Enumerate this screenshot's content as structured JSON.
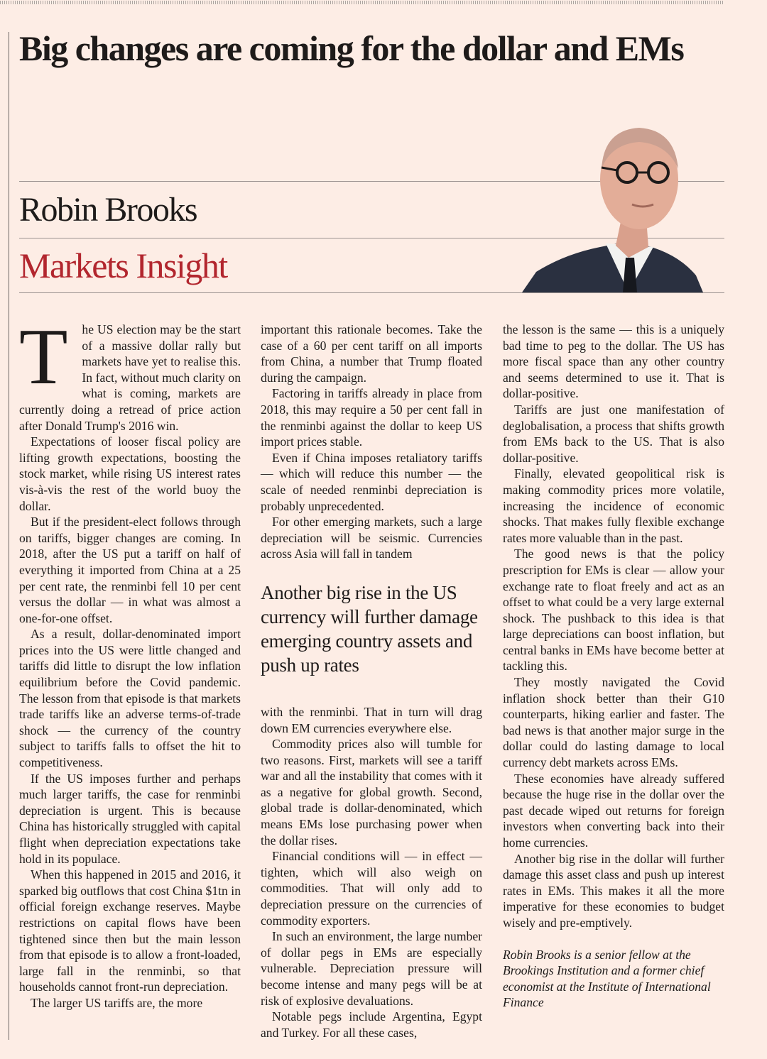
{
  "headline": "Big changes are coming for the dollar and EMs",
  "author": "Robin Brooks",
  "column_name": "Markets Insight",
  "colors": {
    "background": "#fdede5",
    "accent": "#b2262e"
  },
  "photo": {
    "alt": "author-portrait"
  },
  "article": {
    "drop_cap": "T",
    "col1": [
      "he US election may be the start of a massive dollar rally but markets have yet to realise this. In fact, without much clarity on what is coming, markets are currently doing a retread of price action after Donald Trump's 2016 win.",
      "Expectations of looser fiscal policy are lifting growth expectations, boosting the stock market, while rising US interest rates vis-à-vis the rest of the world buoy the dollar.",
      "But if the president-elect follows through on tariffs, bigger changes are coming. In 2018, after the US put a tariff on half of everything it imported from China at a 25 per cent rate, the renminbi fell 10 per cent versus the dollar — in what was almost a one-for-one offset.",
      "As a result, dollar-denominated import prices into the US were little changed and tariffs did little to disrupt the low inflation equilibrium before the Covid pandemic. The lesson from that episode is that markets trade tariffs like an adverse terms-of-trade shock — the currency of the country subject to tariffs falls to offset the hit to competitiveness.",
      "If the US imposes further and perhaps much larger tariffs, the case for renminbi depreciation is urgent. This is because China has historically struggled with capital flight when depreciation expectations take hold in its populace.",
      "When this happened in 2015 and 2016, it sparked big outflows that cost China $1tn in official foreign exchange reserves. Maybe restrictions on capital flows have been tightened since then but the main lesson from that episode is to allow a front-loaded, large fall in the renminbi, so that households cannot front-run depreciation.",
      "The larger US tariffs are, the more"
    ],
    "col2_top": [
      "important this rationale becomes. Take the case of a 60 per cent tariff on all imports from China, a number that Trump floated during the campaign.",
      "Factoring in tariffs already in place from 2018, this may require a 50 per cent fall in the renminbi against the dollar to keep US import prices stable.",
      "Even if China imposes retaliatory tariffs — which will reduce this number — the scale of needed renminbi depreciation is probably unprecedented.",
      "For other emerging markets, such a large depreciation will be seismic. Currencies across Asia will fall in tandem"
    ],
    "pull_quote": "Another big rise in the US currency will further damage emerging country assets and push up rates",
    "col2_bottom": [
      "with the renminbi. That in turn will drag down EM currencies everywhere else.",
      "Commodity prices also will tumble for two reasons. First, markets will see a tariff war and all the instability that comes with it as a negative for global growth. Second, global trade is dollar-denominated, which means EMs lose purchasing power when the dollar rises.",
      "Financial conditions will — in effect — tighten, which will also weigh on commodities. That will only add to depreciation pressure on the currencies of commodity exporters.",
      "In such an environment, the large number of dollar pegs in EMs are especially vulnerable. Depreciation pressure will become intense and many pegs will be at risk of explosive devaluations.",
      "Notable pegs include Argentina, Egypt and Turkey. For all these cases,"
    ],
    "col3": [
      "the lesson is the same — this is a uniquely bad time to peg to the dollar. The US has more fiscal space than any other country and seems determined to use it. That is dollar-positive.",
      "Tariffs are just one manifestation of deglobalisation, a process that shifts growth from EMs back to the US. That is also dollar-positive.",
      "Finally, elevated geopolitical risk is making commodity prices more volatile, increasing the incidence of economic shocks. That makes fully flexible exchange rates more valuable than in the past.",
      "The good news is that the policy prescription for EMs is clear — allow your exchange rate to float freely and act as an offset to what could be a very large external shock. The pushback to this idea is that large depreciations can boost inflation, but central banks in EMs have become better at tackling this.",
      "They mostly navigated the Covid inflation shock better than their G10 counterparts, hiking earlier and faster. The bad news is that another major surge in the dollar could do lasting damage to local currency debt markets across EMs.",
      "These economies have already suffered because the huge rise in the dollar over the past decade wiped out returns for foreign investors when converting back into their home currencies.",
      "Another big rise in the dollar will further damage this asset class and push up interest rates in EMs. This makes it all the more imperative for these economies to budget wisely and pre-emptively."
    ],
    "bio": "Robin Brooks is a senior fellow at the Brookings Institution and a former chief economist at the Institute of International Finance"
  }
}
